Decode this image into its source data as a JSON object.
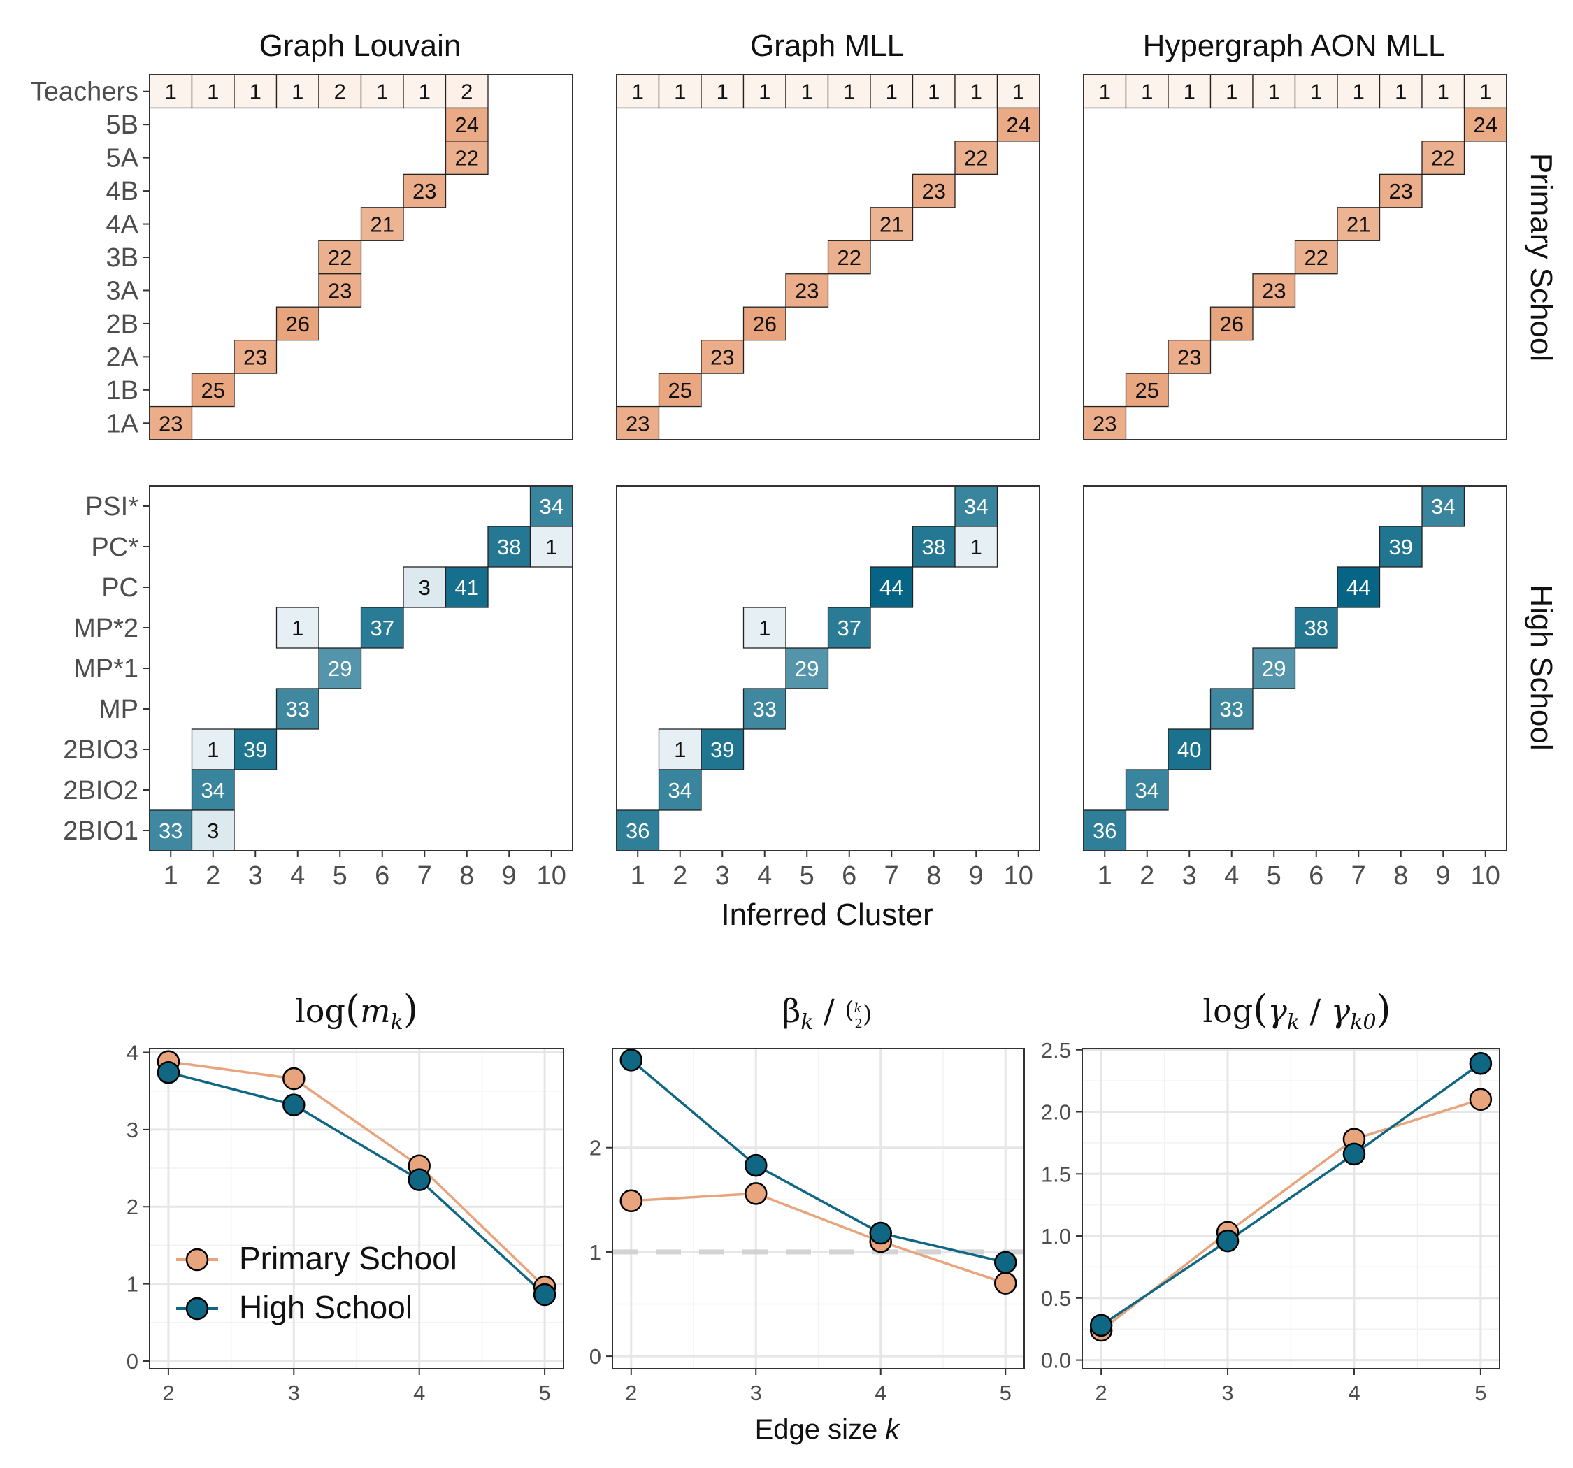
{
  "heatmap_panels": {
    "column_titles": [
      "Graph Louvain",
      "Graph MLL",
      "Hypergraph AON MLL"
    ],
    "row_strips": [
      "Primary School",
      "High School"
    ],
    "x_axis_label": "Inferred Cluster",
    "x_tick_labels": [
      "1",
      "2",
      "3",
      "4",
      "5",
      "6",
      "7",
      "8",
      "9",
      "10"
    ]
  },
  "line_panels": {
    "titles": [
      "log(m_k)",
      "β_k / C(k,2)",
      "log(γ_k / γ_k0)"
    ],
    "x_axis_label": "Edge size k",
    "legend": [
      "Primary School",
      "High School"
    ]
  },
  "colors": {
    "primary_scale": [
      "#fdf3ed",
      "#e8a47c"
    ],
    "high_scale": [
      "#e6eff3",
      "#066584"
    ],
    "primary_line": "#e8a47c",
    "high_line": "#0f6784",
    "reference_line": "#d3d3d3"
  },
  "chart_data": [
    {
      "type": "heatmap",
      "title": "Graph Louvain",
      "facet": "Primary School",
      "rows": [
        "Teachers",
        "5B",
        "5A",
        "4B",
        "4A",
        "3B",
        "3A",
        "2B",
        "2A",
        "1B",
        "1A"
      ],
      "columns": [
        1,
        2,
        3,
        4,
        5,
        6,
        7,
        8,
        9,
        10
      ],
      "cells": [
        {
          "row": "Teachers",
          "col": 1,
          "value": 1
        },
        {
          "row": "Teachers",
          "col": 2,
          "value": 1
        },
        {
          "row": "Teachers",
          "col": 3,
          "value": 1
        },
        {
          "row": "Teachers",
          "col": 4,
          "value": 1
        },
        {
          "row": "Teachers",
          "col": 5,
          "value": 2
        },
        {
          "row": "Teachers",
          "col": 6,
          "value": 1
        },
        {
          "row": "Teachers",
          "col": 7,
          "value": 1
        },
        {
          "row": "Teachers",
          "col": 8,
          "value": 2
        },
        {
          "row": "5B",
          "col": 8,
          "value": 24
        },
        {
          "row": "5A",
          "col": 8,
          "value": 22
        },
        {
          "row": "4B",
          "col": 7,
          "value": 23
        },
        {
          "row": "4A",
          "col": 6,
          "value": 21
        },
        {
          "row": "3B",
          "col": 5,
          "value": 22
        },
        {
          "row": "3A",
          "col": 5,
          "value": 23
        },
        {
          "row": "2B",
          "col": 4,
          "value": 26
        },
        {
          "row": "2A",
          "col": 3,
          "value": 23
        },
        {
          "row": "1B",
          "col": 2,
          "value": 25
        },
        {
          "row": "1A",
          "col": 1,
          "value": 23
        }
      ]
    },
    {
      "type": "heatmap",
      "title": "Graph MLL",
      "facet": "Primary School",
      "rows": [
        "Teachers",
        "5B",
        "5A",
        "4B",
        "4A",
        "3B",
        "3A",
        "2B",
        "2A",
        "1B",
        "1A"
      ],
      "columns": [
        1,
        2,
        3,
        4,
        5,
        6,
        7,
        8,
        9,
        10
      ],
      "cells": [
        {
          "row": "Teachers",
          "col": 1,
          "value": 1
        },
        {
          "row": "Teachers",
          "col": 2,
          "value": 1
        },
        {
          "row": "Teachers",
          "col": 3,
          "value": 1
        },
        {
          "row": "Teachers",
          "col": 4,
          "value": 1
        },
        {
          "row": "Teachers",
          "col": 5,
          "value": 1
        },
        {
          "row": "Teachers",
          "col": 6,
          "value": 1
        },
        {
          "row": "Teachers",
          "col": 7,
          "value": 1
        },
        {
          "row": "Teachers",
          "col": 8,
          "value": 1
        },
        {
          "row": "Teachers",
          "col": 9,
          "value": 1
        },
        {
          "row": "Teachers",
          "col": 10,
          "value": 1
        },
        {
          "row": "5B",
          "col": 10,
          "value": 24
        },
        {
          "row": "5A",
          "col": 9,
          "value": 22
        },
        {
          "row": "4B",
          "col": 8,
          "value": 23
        },
        {
          "row": "4A",
          "col": 7,
          "value": 21
        },
        {
          "row": "3B",
          "col": 6,
          "value": 22
        },
        {
          "row": "3A",
          "col": 5,
          "value": 23
        },
        {
          "row": "2B",
          "col": 4,
          "value": 26
        },
        {
          "row": "2A",
          "col": 3,
          "value": 23
        },
        {
          "row": "1B",
          "col": 2,
          "value": 25
        },
        {
          "row": "1A",
          "col": 1,
          "value": 23
        }
      ]
    },
    {
      "type": "heatmap",
      "title": "Hypergraph AON MLL",
      "facet": "Primary School",
      "rows": [
        "Teachers",
        "5B",
        "5A",
        "4B",
        "4A",
        "3B",
        "3A",
        "2B",
        "2A",
        "1B",
        "1A"
      ],
      "columns": [
        1,
        2,
        3,
        4,
        5,
        6,
        7,
        8,
        9,
        10
      ],
      "cells": [
        {
          "row": "Teachers",
          "col": 1,
          "value": 1
        },
        {
          "row": "Teachers",
          "col": 2,
          "value": 1
        },
        {
          "row": "Teachers",
          "col": 3,
          "value": 1
        },
        {
          "row": "Teachers",
          "col": 4,
          "value": 1
        },
        {
          "row": "Teachers",
          "col": 5,
          "value": 1
        },
        {
          "row": "Teachers",
          "col": 6,
          "value": 1
        },
        {
          "row": "Teachers",
          "col": 7,
          "value": 1
        },
        {
          "row": "Teachers",
          "col": 8,
          "value": 1
        },
        {
          "row": "Teachers",
          "col": 9,
          "value": 1
        },
        {
          "row": "Teachers",
          "col": 10,
          "value": 1
        },
        {
          "row": "5B",
          "col": 10,
          "value": 24
        },
        {
          "row": "5A",
          "col": 9,
          "value": 22
        },
        {
          "row": "4B",
          "col": 8,
          "value": 23
        },
        {
          "row": "4A",
          "col": 7,
          "value": 21
        },
        {
          "row": "3B",
          "col": 6,
          "value": 22
        },
        {
          "row": "3A",
          "col": 5,
          "value": 23
        },
        {
          "row": "2B",
          "col": 4,
          "value": 26
        },
        {
          "row": "2A",
          "col": 3,
          "value": 23
        },
        {
          "row": "1B",
          "col": 2,
          "value": 25
        },
        {
          "row": "1A",
          "col": 1,
          "value": 23
        }
      ]
    },
    {
      "type": "heatmap",
      "title": "Graph Louvain",
      "facet": "High School",
      "rows": [
        "PSI*",
        "PC*",
        "PC",
        "MP*2",
        "MP*1",
        "MP",
        "2BIO3",
        "2BIO2",
        "2BIO1"
      ],
      "columns": [
        1,
        2,
        3,
        4,
        5,
        6,
        7,
        8,
        9,
        10
      ],
      "cells": [
        {
          "row": "PSI*",
          "col": 10,
          "value": 34
        },
        {
          "row": "PC*",
          "col": 9,
          "value": 38
        },
        {
          "row": "PC*",
          "col": 10,
          "value": 1
        },
        {
          "row": "PC",
          "col": 7,
          "value": 3
        },
        {
          "row": "PC",
          "col": 8,
          "value": 41
        },
        {
          "row": "MP*2",
          "col": 4,
          "value": 1
        },
        {
          "row": "MP*2",
          "col": 6,
          "value": 37
        },
        {
          "row": "MP*1",
          "col": 5,
          "value": 29
        },
        {
          "row": "MP",
          "col": 4,
          "value": 33
        },
        {
          "row": "2BIO3",
          "col": 2,
          "value": 1
        },
        {
          "row": "2BIO3",
          "col": 3,
          "value": 39
        },
        {
          "row": "2BIO2",
          "col": 2,
          "value": 34
        },
        {
          "row": "2BIO1",
          "col": 1,
          "value": 33
        },
        {
          "row": "2BIO1",
          "col": 2,
          "value": 3
        }
      ]
    },
    {
      "type": "heatmap",
      "title": "Graph MLL",
      "facet": "High School",
      "rows": [
        "PSI*",
        "PC*",
        "PC",
        "MP*2",
        "MP*1",
        "MP",
        "2BIO3",
        "2BIO2",
        "2BIO1"
      ],
      "columns": [
        1,
        2,
        3,
        4,
        5,
        6,
        7,
        8,
        9,
        10
      ],
      "cells": [
        {
          "row": "PSI*",
          "col": 9,
          "value": 34
        },
        {
          "row": "PC*",
          "col": 8,
          "value": 38
        },
        {
          "row": "PC*",
          "col": 9,
          "value": 1
        },
        {
          "row": "PC",
          "col": 7,
          "value": 44
        },
        {
          "row": "MP*2",
          "col": 4,
          "value": 1
        },
        {
          "row": "MP*2",
          "col": 6,
          "value": 37
        },
        {
          "row": "MP*1",
          "col": 5,
          "value": 29
        },
        {
          "row": "MP",
          "col": 4,
          "value": 33
        },
        {
          "row": "2BIO3",
          "col": 2,
          "value": 1
        },
        {
          "row": "2BIO3",
          "col": 3,
          "value": 39
        },
        {
          "row": "2BIO2",
          "col": 2,
          "value": 34
        },
        {
          "row": "2BIO1",
          "col": 1,
          "value": 36
        }
      ]
    },
    {
      "type": "heatmap",
      "title": "Hypergraph AON MLL",
      "facet": "High School",
      "rows": [
        "PSI*",
        "PC*",
        "PC",
        "MP*2",
        "MP*1",
        "MP",
        "2BIO3",
        "2BIO2",
        "2BIO1"
      ],
      "columns": [
        1,
        2,
        3,
        4,
        5,
        6,
        7,
        8,
        9,
        10
      ],
      "cells": [
        {
          "row": "PSI*",
          "col": 9,
          "value": 34
        },
        {
          "row": "PC*",
          "col": 8,
          "value": 39
        },
        {
          "row": "PC",
          "col": 7,
          "value": 44
        },
        {
          "row": "MP*2",
          "col": 6,
          "value": 38
        },
        {
          "row": "MP*1",
          "col": 5,
          "value": 29
        },
        {
          "row": "MP",
          "col": 4,
          "value": 33
        },
        {
          "row": "2BIO3",
          "col": 3,
          "value": 40
        },
        {
          "row": "2BIO2",
          "col": 2,
          "value": 34
        },
        {
          "row": "2BIO1",
          "col": 1,
          "value": 36
        }
      ]
    },
    {
      "type": "line",
      "title": "log(m_k)",
      "x": [
        2,
        3,
        4,
        5
      ],
      "series": [
        {
          "name": "Primary School",
          "values": [
            3.88,
            3.66,
            2.53,
            0.96
          ]
        },
        {
          "name": "High School",
          "values": [
            3.74,
            3.32,
            2.35,
            0.86
          ]
        }
      ],
      "xlim": [
        1.85,
        5.15
      ],
      "ylim": [
        -0.1,
        4.05
      ],
      "yticks": [
        0,
        1,
        2,
        3,
        4
      ],
      "grid": true,
      "legend_position": "bottom-left"
    },
    {
      "type": "line",
      "title": "β_k / C(k,2)",
      "x": [
        2,
        3,
        4,
        5
      ],
      "series": [
        {
          "name": "Primary School",
          "values": [
            1.49,
            1.56,
            1.1,
            0.7
          ]
        },
        {
          "name": "High School",
          "values": [
            2.84,
            1.83,
            1.18,
            0.9
          ]
        }
      ],
      "reference_line": 1,
      "xlim": [
        1.85,
        5.15
      ],
      "ylim": [
        -0.12,
        2.95
      ],
      "yticks": [
        0,
        1,
        2
      ],
      "grid": true
    },
    {
      "type": "line",
      "title": "log(γ_k / γ_k0)",
      "x": [
        2,
        3,
        4,
        5
      ],
      "series": [
        {
          "name": "Primary School",
          "values": [
            0.24,
            1.03,
            1.78,
            2.1
          ]
        },
        {
          "name": "High School",
          "values": [
            0.28,
            0.96,
            1.66,
            2.39
          ]
        }
      ],
      "xlim": [
        1.85,
        5.15
      ],
      "ylim": [
        -0.07,
        2.51
      ],
      "yticks": [
        0.0,
        0.5,
        1.0,
        1.5,
        2.0,
        2.5
      ],
      "ytick_labels": [
        "0.0",
        "0.5",
        "1.0",
        "1.5",
        "2.0",
        "2.5"
      ],
      "grid": true
    }
  ]
}
